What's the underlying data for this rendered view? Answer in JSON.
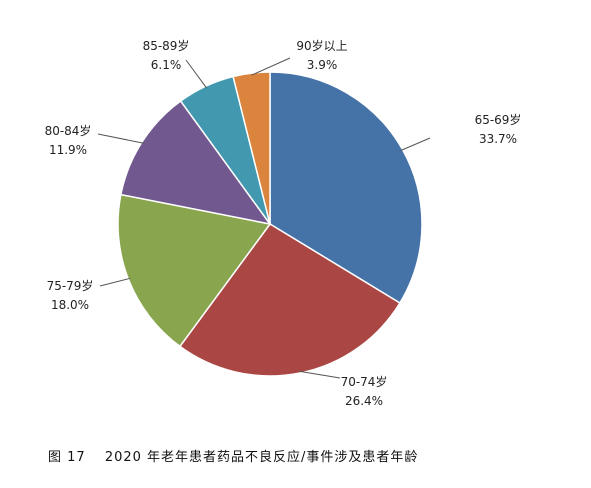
{
  "caption": {
    "figure_no": "图 17",
    "text": "2020 年老年患者药品不良反应/事件涉及患者年龄"
  },
  "chart_data": {
    "type": "pie",
    "title": "",
    "start_angle_deg": 0,
    "direction": "clockwise",
    "slices": [
      {
        "label": "65-69岁",
        "pct_label": "33.7%",
        "value": 33.7,
        "color": "#4572A7"
      },
      {
        "label": "70-74岁",
        "pct_label": "26.4%",
        "value": 26.4,
        "color": "#AA4643"
      },
      {
        "label": "75-79岁",
        "pct_label": "18.0%",
        "value": 18.0,
        "color": "#89A54E"
      },
      {
        "label": "80-84岁",
        "pct_label": "11.9%",
        "value": 11.9,
        "color": "#71588F"
      },
      {
        "label": "85-89岁",
        "pct_label": "6.1%",
        "value": 6.1,
        "color": "#4198AF"
      },
      {
        "label": "90岁以上",
        "pct_label": "3.9%",
        "value": 3.9,
        "color": "#DB843D"
      }
    ]
  }
}
